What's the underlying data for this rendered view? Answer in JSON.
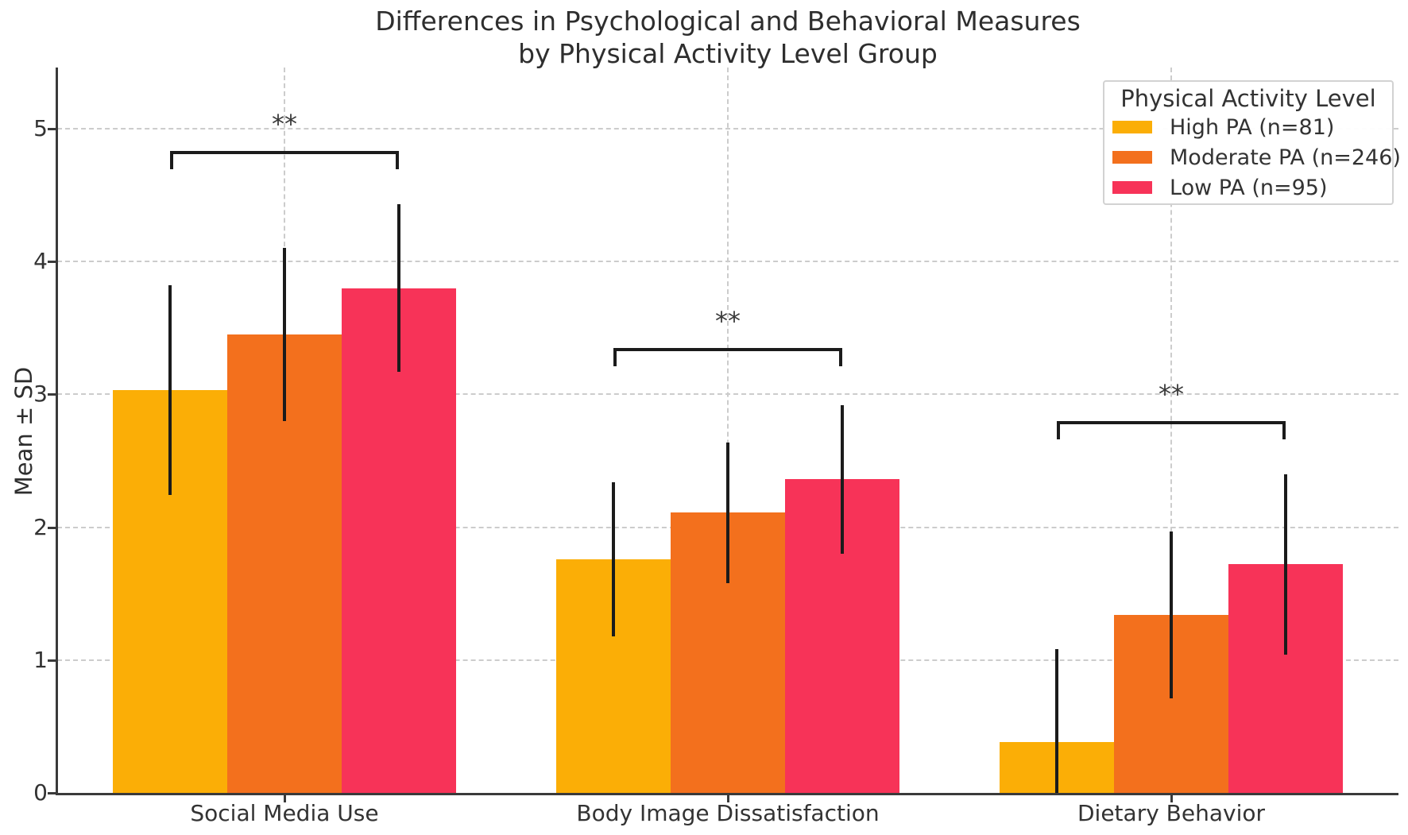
{
  "chart_data": {
    "type": "bar",
    "title": "Differences in Psychological and Behavioral Measures by Physical Activity Level Group",
    "title_line1": "Differences in Psychological and Behavioral Measures",
    "title_line2": "by Physical Activity Level Group",
    "ylabel": "Mean ± SD",
    "xlabel": "",
    "ylim": [
      0,
      5.46
    ],
    "yticks": [
      0,
      1,
      2,
      3,
      4,
      5
    ],
    "ytick_labels": [
      "0",
      "1",
      "2",
      "3",
      "4",
      "5"
    ],
    "grid": "dashed horizontal and vertical gridlines",
    "legend_title": "Physical Activity Level",
    "legend_position": "upper right",
    "error_bars": "mean ± standard deviation, no caps",
    "categories": [
      "Social Media Use",
      "Body Image Dissatisfaction",
      "Dietary Behavior"
    ],
    "series": [
      {
        "name": "High PA (n=81)",
        "color": "#FBAE06",
        "means": [
          3.03,
          1.76,
          0.38
        ],
        "sds": [
          0.79,
          0.58,
          0.7
        ]
      },
      {
        "name": "Moderate PA (n=246)",
        "color": "#F3701D",
        "means": [
          3.45,
          2.11,
          1.34
        ],
        "sds": [
          0.65,
          0.53,
          0.63
        ]
      },
      {
        "name": "Low PA (n=95)",
        "color": "#F73358",
        "means": [
          3.8,
          2.36,
          1.72
        ],
        "sds": [
          0.63,
          0.56,
          0.68
        ]
      }
    ],
    "significance": [
      {
        "category_index": 0,
        "label": "**",
        "bracket_y": 4.83
      },
      {
        "category_index": 1,
        "label": "**",
        "bracket_y": 3.35
      },
      {
        "category_index": 2,
        "label": "**",
        "bracket_y": 2.8
      }
    ],
    "colors": {
      "grid": "#CCCCCC",
      "axis": "#3A3A3A",
      "text": "#333333",
      "error_bar": "#1B1B1B",
      "background": "#FFFFFF"
    }
  }
}
